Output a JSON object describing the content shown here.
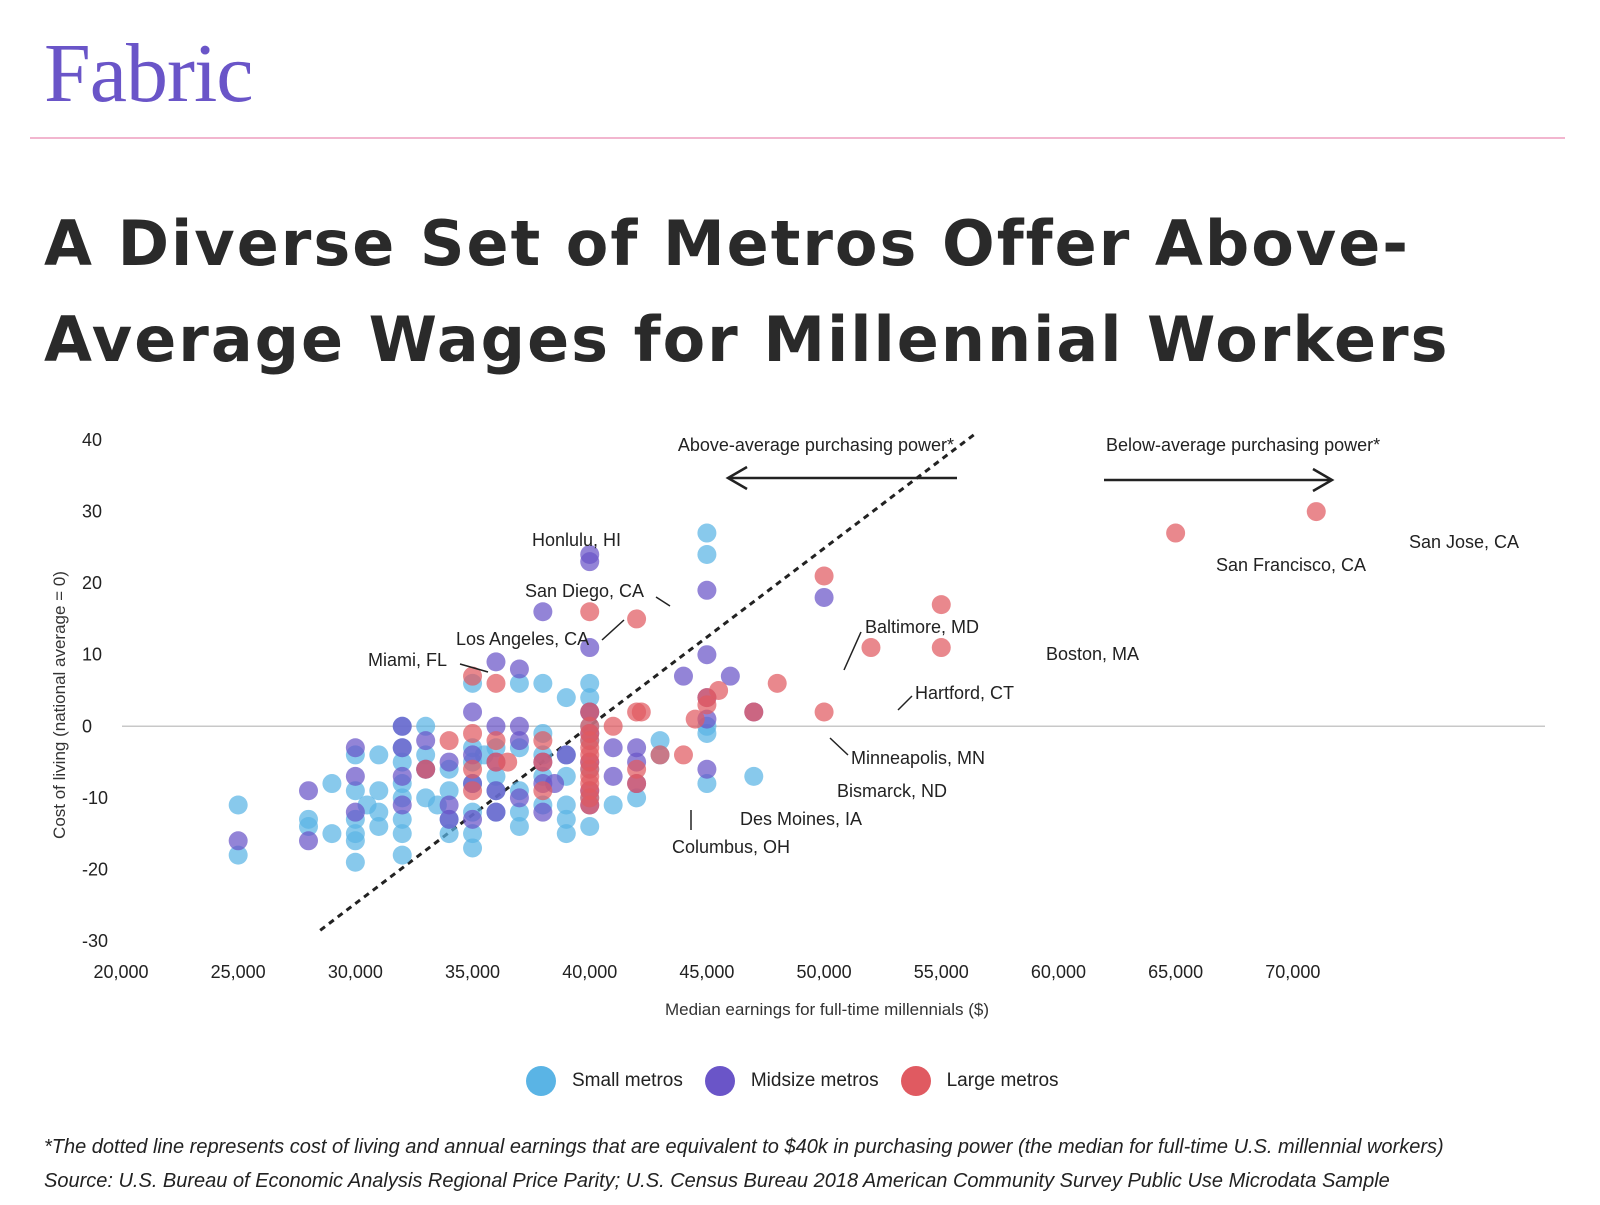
{
  "brand": "Fabric",
  "title": "A Diverse Set of Metros Offer Above-Average Wages for Millennial Workers",
  "footnotes": {
    "note": "*The dotted line represents cost of living and annual earnings that are equivalent to $40k in purchasing power (the median for full-time U.S. millennial workers)",
    "source": "Source: U.S. Bureau of Economic Analysis Regional Price Parity; U.S. Census Bureau 2018 American Community Survey Public Use Microdata Sample"
  },
  "colors": {
    "brand": "#6a55c8",
    "rule": "#f2b6cf",
    "small": "#5ab4e5",
    "midsize": "#6a55c8",
    "large": "#e05a61"
  },
  "chart_data": {
    "type": "scatter",
    "xlabel": "Median earnings for full-time millennials ($)",
    "ylabel": "Cost of living (national average = 0)",
    "xlim": [
      20000,
      75000
    ],
    "ylim": [
      -30,
      40
    ],
    "xticks": [
      "20,000",
      "25,000",
      "30,000",
      "35,000",
      "40,000",
      "45,000",
      "50,000",
      "55,000",
      "60,000",
      "65,000",
      "70,000"
    ],
    "yticks": [
      "40",
      "30",
      "20",
      "10",
      "0",
      "-10",
      "-20",
      "-30"
    ],
    "zero_line": true,
    "grid": false,
    "legend_position": "bottom",
    "annotations": {
      "above": "Above-average purchasing power*",
      "below": "Below-average purchasing power*"
    },
    "reference_line": {
      "x": [
        28500,
        56500
      ],
      "y": [
        -28.5,
        41
      ]
    },
    "series": [
      {
        "name": "Small metros",
        "color": "#5ab4e5",
        "points": [
          [
            25000,
            -11
          ],
          [
            25000,
            -18
          ],
          [
            28000,
            -13
          ],
          [
            28000,
            -14
          ],
          [
            29000,
            -8
          ],
          [
            29000,
            -15
          ],
          [
            30000,
            -4
          ],
          [
            30000,
            -9
          ],
          [
            30000,
            -13
          ],
          [
            30000,
            -15
          ],
          [
            30000,
            -16
          ],
          [
            30000,
            -19
          ],
          [
            30500,
            -11
          ],
          [
            31000,
            -4
          ],
          [
            31000,
            -9
          ],
          [
            31000,
            -12
          ],
          [
            31000,
            -14
          ],
          [
            32000,
            0
          ],
          [
            32000,
            -3
          ],
          [
            32000,
            -5
          ],
          [
            32000,
            -8
          ],
          [
            32000,
            -10
          ],
          [
            32000,
            -13
          ],
          [
            32000,
            -15
          ],
          [
            32000,
            -18
          ],
          [
            33000,
            0
          ],
          [
            33000,
            -4
          ],
          [
            33000,
            -6
          ],
          [
            33000,
            -10
          ],
          [
            33500,
            -11
          ],
          [
            34000,
            -6
          ],
          [
            34000,
            -9
          ],
          [
            34000,
            -13
          ],
          [
            34000,
            -15
          ],
          [
            35000,
            6
          ],
          [
            35000,
            -3
          ],
          [
            35000,
            -5
          ],
          [
            35000,
            -8
          ],
          [
            35000,
            -12
          ],
          [
            35000,
            -15
          ],
          [
            35000,
            -17
          ],
          [
            35500,
            -4
          ],
          [
            36000,
            -3
          ],
          [
            36000,
            -7
          ],
          [
            36000,
            -9
          ],
          [
            36000,
            -12
          ],
          [
            37000,
            6
          ],
          [
            37000,
            -3
          ],
          [
            37000,
            -9
          ],
          [
            37000,
            -12
          ],
          [
            37000,
            -14
          ],
          [
            38000,
            6
          ],
          [
            38000,
            -1
          ],
          [
            38000,
            -4
          ],
          [
            38000,
            -7
          ],
          [
            38000,
            -11
          ],
          [
            39000,
            4
          ],
          [
            39000,
            -4
          ],
          [
            39000,
            -7
          ],
          [
            39000,
            -11
          ],
          [
            39000,
            -13
          ],
          [
            39000,
            -15
          ],
          [
            40000,
            6
          ],
          [
            40000,
            4
          ],
          [
            40000,
            2
          ],
          [
            40000,
            0
          ],
          [
            40000,
            -2
          ],
          [
            40000,
            -6
          ],
          [
            40000,
            -10
          ],
          [
            40000,
            -14
          ],
          [
            41000,
            -11
          ],
          [
            42000,
            -10
          ],
          [
            43000,
            -2
          ],
          [
            43000,
            -4
          ],
          [
            45000,
            27
          ],
          [
            45000,
            24
          ],
          [
            45000,
            0
          ],
          [
            45000,
            -1
          ],
          [
            45000,
            -8
          ],
          [
            47000,
            -7
          ]
        ]
      },
      {
        "name": "Midsize metros",
        "color": "#6a55c8",
        "points": [
          [
            25000,
            -16
          ],
          [
            28000,
            -9
          ],
          [
            28000,
            -16
          ],
          [
            30000,
            -3
          ],
          [
            30000,
            -7
          ],
          [
            30000,
            -12
          ],
          [
            32000,
            0
          ],
          [
            32000,
            -3
          ],
          [
            32000,
            -7
          ],
          [
            32000,
            -11
          ],
          [
            33000,
            -2
          ],
          [
            33000,
            -6
          ],
          [
            34000,
            -5
          ],
          [
            34000,
            -11
          ],
          [
            34000,
            -13
          ],
          [
            35000,
            2
          ],
          [
            35000,
            -4
          ],
          [
            35000,
            -8
          ],
          [
            35000,
            -13
          ],
          [
            36000,
            9
          ],
          [
            36000,
            0
          ],
          [
            36000,
            -5
          ],
          [
            36000,
            -9
          ],
          [
            36000,
            -12
          ],
          [
            37000,
            8
          ],
          [
            37000,
            0
          ],
          [
            37000,
            -2
          ],
          [
            37000,
            -10
          ],
          [
            38000,
            16
          ],
          [
            38000,
            -5
          ],
          [
            38000,
            -8
          ],
          [
            38000,
            -12
          ],
          [
            38500,
            -8
          ],
          [
            39000,
            -4
          ],
          [
            40000,
            24
          ],
          [
            40000,
            23
          ],
          [
            40000,
            11
          ],
          [
            40000,
            2
          ],
          [
            40000,
            -1
          ],
          [
            40000,
            -5
          ],
          [
            40000,
            -9
          ],
          [
            40000,
            -11
          ],
          [
            41000,
            -3
          ],
          [
            41000,
            -7
          ],
          [
            42000,
            -3
          ],
          [
            42000,
            -8
          ],
          [
            42000,
            -5
          ],
          [
            44000,
            7
          ],
          [
            45000,
            19
          ],
          [
            45000,
            10
          ],
          [
            45000,
            4
          ],
          [
            45000,
            1
          ],
          [
            45000,
            -6
          ],
          [
            46000,
            7
          ],
          [
            47000,
            2
          ],
          [
            50000,
            18
          ]
        ]
      },
      {
        "name": "Large metros",
        "color": "#e05a61",
        "points": [
          [
            33000,
            -6
          ],
          [
            34000,
            -2
          ],
          [
            35000,
            7
          ],
          [
            35000,
            -1
          ],
          [
            35000,
            -6
          ],
          [
            35000,
            -9
          ],
          [
            36000,
            6
          ],
          [
            36000,
            -2
          ],
          [
            36000,
            -5
          ],
          [
            36500,
            -5
          ],
          [
            38000,
            -2
          ],
          [
            38000,
            -5
          ],
          [
            38000,
            -9
          ],
          [
            40000,
            16
          ],
          [
            40000,
            2
          ],
          [
            40000,
            0
          ],
          [
            40000,
            -1
          ],
          [
            40000,
            -2
          ],
          [
            40000,
            -3
          ],
          [
            40000,
            -4
          ],
          [
            40000,
            -5
          ],
          [
            40000,
            -6
          ],
          [
            40000,
            -7
          ],
          [
            40000,
            -8
          ],
          [
            40000,
            -9
          ],
          [
            40000,
            -10
          ],
          [
            40000,
            -11
          ],
          [
            41000,
            0
          ],
          [
            42000,
            15
          ],
          [
            42000,
            2
          ],
          [
            42200,
            2
          ],
          [
            42000,
            -6
          ],
          [
            42000,
            -8
          ],
          [
            43000,
            -4
          ],
          [
            44000,
            -4
          ],
          [
            44500,
            1
          ],
          [
            45000,
            4
          ],
          [
            45000,
            3
          ],
          [
            45500,
            5
          ],
          [
            47000,
            2
          ],
          [
            48000,
            6
          ],
          [
            50000,
            21
          ],
          [
            50000,
            2
          ],
          [
            52000,
            11
          ],
          [
            55000,
            17
          ],
          [
            55000,
            11
          ],
          [
            65000,
            27
          ],
          [
            71000,
            30
          ]
        ]
      }
    ],
    "callouts": [
      {
        "label": "Honlulu, HI"
      },
      {
        "label": "San Diego, CA"
      },
      {
        "label": "Los Angeles, CA"
      },
      {
        "label": "Miami, FL"
      },
      {
        "label": "Baltimore, MD"
      },
      {
        "label": "Hartford, CT"
      },
      {
        "label": "Minneapolis, MN"
      },
      {
        "label": "Bismarck, ND"
      },
      {
        "label": "Des Moines, IA"
      },
      {
        "label": "Columbus, OH"
      },
      {
        "label": "Boston, MA"
      },
      {
        "label": "San Francisco, CA"
      },
      {
        "label": "San Jose, CA"
      }
    ]
  }
}
